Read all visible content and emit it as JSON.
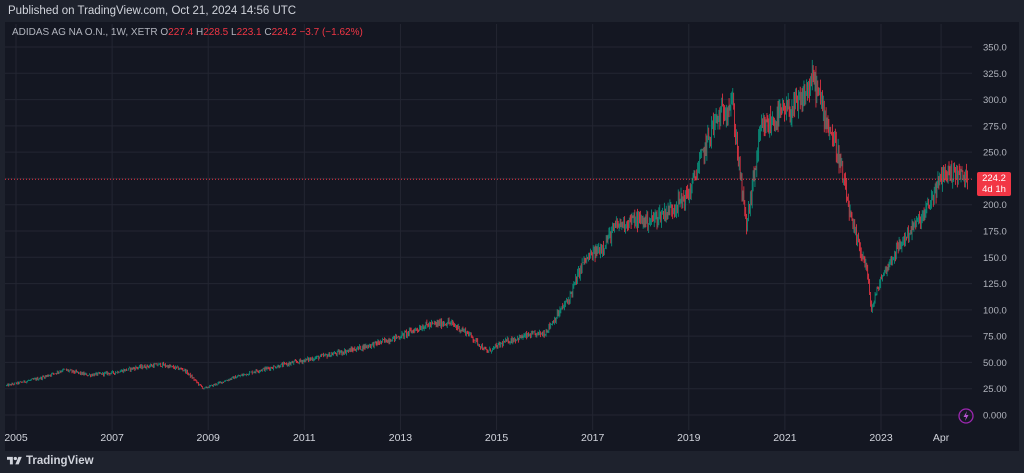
{
  "header": {
    "published": "Published on TradingView.com, Oct 21, 2024 14:56 UTC"
  },
  "legend": {
    "symbol": "ADIDAS AG NA O.N., 1W, XETR",
    "o_label": "O",
    "o_value": "227.4",
    "h_label": "H",
    "h_value": "228.5",
    "l_label": "L",
    "l_value": "223.1",
    "c_label": "C",
    "c_value": "224.2",
    "change": "−3.7 (−1.62%)"
  },
  "price_badge": {
    "price": "224.2",
    "countdown": "4d 1h"
  },
  "footer": {
    "brand": "TradingView"
  },
  "colors": {
    "up": "#089981",
    "down": "#f23645",
    "background": "#141722",
    "grid": "#232632",
    "price_line": "#f23645"
  },
  "chart_data": {
    "type": "line",
    "title": "",
    "xlabel": "",
    "ylabel": "",
    "ylim": [
      0,
      350
    ],
    "y_ticks": [
      "350.0",
      "325.0",
      "300.0",
      "275.0",
      "250.0",
      "225.0",
      "200.0",
      "175.0",
      "150.0",
      "125.0",
      "100.0",
      "75.00",
      "50.00",
      "25.00",
      "0.000"
    ],
    "x_ticks": [
      "2005",
      "2007",
      "2009",
      "2011",
      "2013",
      "2015",
      "2017",
      "2019",
      "2021",
      "2023",
      "Apr"
    ],
    "last_price": 224.2,
    "grid": true,
    "series": [
      {
        "name": "",
        "x": [
          2004.8,
          2005.5,
          2006.0,
          2006.5,
          2007.0,
          2007.5,
          2008.0,
          2008.5,
          2008.9,
          2009.5,
          2010.0,
          2010.5,
          2011.0,
          2011.5,
          2012.0,
          2012.5,
          2013.0,
          2013.5,
          2014.0,
          2014.4,
          2014.8,
          2015.2,
          2015.6,
          2016.0,
          2016.5,
          2016.8,
          2017.2,
          2017.5,
          2017.8,
          2018.2,
          2018.6,
          2019.0,
          2019.5,
          2019.9,
          2020.1,
          2020.2,
          2020.5,
          2020.9,
          2021.3,
          2021.6,
          2021.8,
          2022.1,
          2022.4,
          2022.7,
          2022.8,
          2023.0,
          2023.3,
          2023.6,
          2023.9,
          2024.1,
          2024.3,
          2024.6,
          2024.8
        ],
        "values": [
          28,
          35,
          43,
          38,
          40,
          45,
          48,
          43,
          25,
          35,
          42,
          47,
          52,
          57,
          62,
          68,
          75,
          85,
          88,
          78,
          60,
          70,
          75,
          78,
          110,
          145,
          160,
          180,
          185,
          185,
          195,
          210,
          275,
          300,
          215,
          180,
          270,
          285,
          295,
          320,
          290,
          250,
          180,
          140,
          100,
          130,
          155,
          175,
          190,
          210,
          230,
          230,
          224
        ]
      }
    ]
  }
}
